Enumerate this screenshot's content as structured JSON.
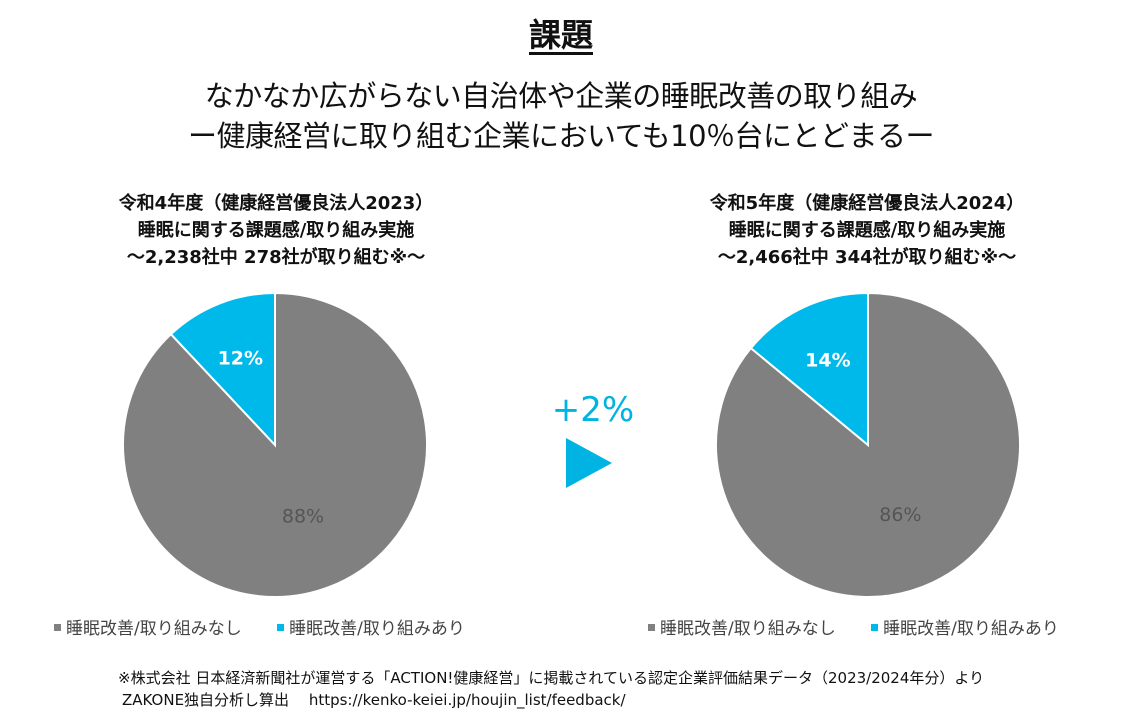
{
  "title": "課題",
  "subtitle_line1": "なかなか広がらない自治体や企業の睡眠改善の取り組み",
  "subtitle_line2": "ー健康経営に取り組む企業においても10％台にとどまるー",
  "delta_label": "+2%",
  "colors": {
    "gray": "#808080",
    "blue": "#00b9eb",
    "accent": "#00b3e3"
  },
  "chart_data": [
    {
      "type": "pie",
      "title_lines": [
        "令和4年度（健康経営優良法人2023）",
        "睡眠に関する課題感/取り組み実施",
        "〜2,238社中 278社が取り組む※〜"
      ],
      "labels": [
        "睡眠改善/取り組みなし",
        "睡眠改善/取り組みあり"
      ],
      "values": [
        88,
        12
      ],
      "value_labels": [
        "88%",
        "12%"
      ],
      "legend_position": "bottom"
    },
    {
      "type": "pie",
      "title_lines": [
        "令和5年度（健康経営優良法人2024）",
        "睡眠に関する課題感/取り組み実施",
        "〜2,466社中 344社が取り組む※〜"
      ],
      "labels": [
        "睡眠改善/取り組みなし",
        "睡眠改善/取り組みあり"
      ],
      "values": [
        86,
        14
      ],
      "value_labels": [
        "86%",
        "14%"
      ],
      "legend_position": "bottom"
    }
  ],
  "footnote_line1": "※株式会社 日本経済新聞社が運営する「ACTION!健康経営」に掲載されている認定企業評価結果データ（2023/2024年分）より",
  "footnote_line2": "ZAKONE独自分析し算出　 https://kenko-keiei.jp/houjin_list/feedback/"
}
